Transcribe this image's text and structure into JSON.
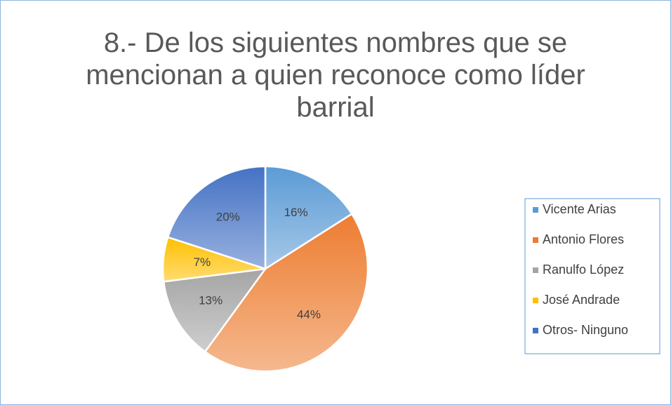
{
  "chart_data": {
    "type": "pie",
    "title": "8.- De los siguientes nombres que se mencionan a quien reconoce como líder barrial",
    "categories": [
      "Vicente Arias",
      "Antonio Flores",
      "Ranulfo López",
      "José Andrade",
      "Otros- Ninguno"
    ],
    "values": [
      16,
      44,
      13,
      7,
      20
    ],
    "value_labels": [
      "16%",
      "44%",
      "13%",
      "7%",
      "20%"
    ],
    "colors": [
      "#5b9bd5",
      "#ed7d31",
      "#a5a5a5",
      "#ffc000",
      "#4472c4"
    ],
    "legend": "right"
  }
}
